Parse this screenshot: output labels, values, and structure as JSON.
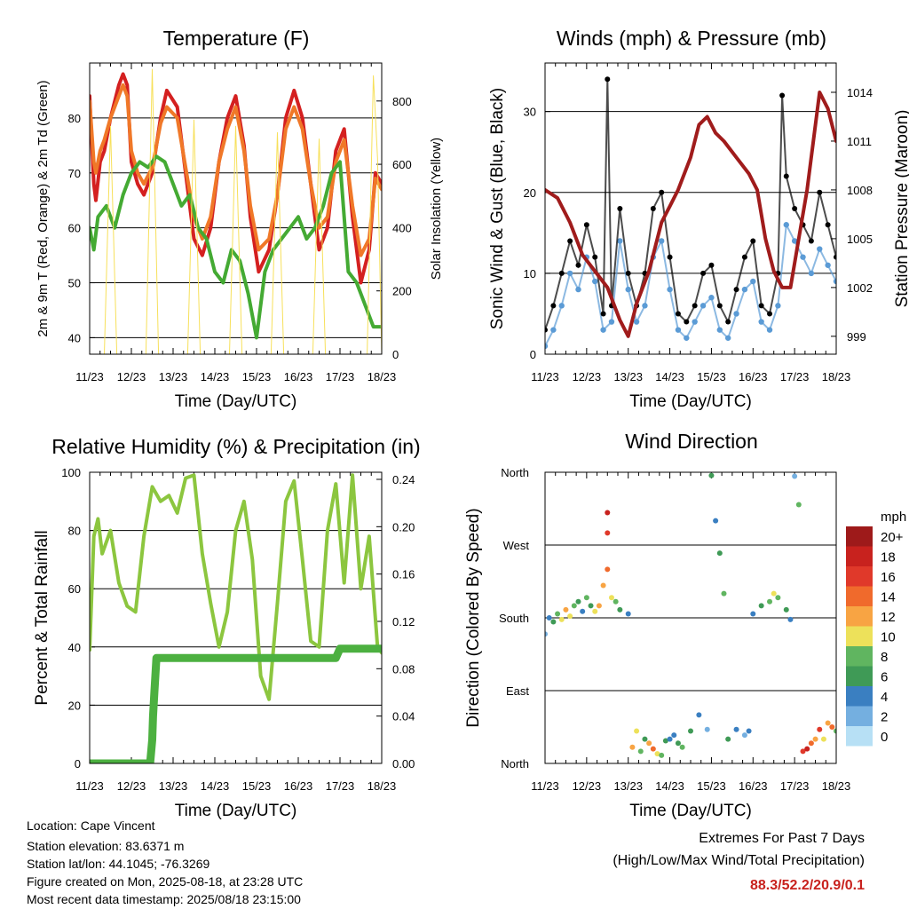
{
  "chart_data": [
    {
      "type": "line",
      "title": "Temperature (F)",
      "xlabel": "Time (Day/UTC)",
      "ylabel_left": "2m & 9m T (Red, Orange) & 2m Td (Green)",
      "ylabel_right": "Solar Insolation (Yellow)",
      "x_ticks": [
        "11/23",
        "12/23",
        "13/23",
        "14/23",
        "15/23",
        "16/23",
        "17/23",
        "18/23"
      ],
      "ylim_left": [
        37,
        90
      ],
      "yticks_left": [
        40,
        50,
        60,
        70,
        80
      ],
      "ylim_right": [
        0,
        920
      ],
      "yticks_right": [
        0,
        200,
        400,
        600,
        800
      ],
      "grid": "horizontal",
      "series": [
        {
          "name": "2m T",
          "color": "#d42020",
          "axis": "left",
          "x": [
            0,
            0.1,
            0.15,
            0.25,
            0.35,
            0.5,
            0.7,
            0.8,
            0.9,
            1.0,
            1.15,
            1.3,
            1.5,
            1.7,
            1.85,
            2.1,
            2.3,
            2.5,
            2.7,
            2.9,
            3.1,
            3.3,
            3.5,
            3.7,
            3.85,
            4.05,
            4.3,
            4.5,
            4.7,
            4.9,
            5.1,
            5.3,
            5.5,
            5.7,
            5.9,
            6.1,
            6.3,
            6.5,
            6.7,
            6.85,
            7.0
          ],
          "y": [
            84,
            68,
            65,
            72,
            74,
            80,
            86,
            88,
            86,
            72,
            68,
            66,
            70,
            80,
            85,
            82,
            70,
            58,
            55,
            60,
            72,
            80,
            84,
            75,
            62,
            52,
            56,
            66,
            80,
            85,
            80,
            68,
            56,
            60,
            74,
            78,
            62,
            50,
            56,
            70,
            68
          ]
        },
        {
          "name": "9m T",
          "color": "#f07828",
          "axis": "left",
          "x": [
            0,
            0.1,
            0.15,
            0.25,
            0.35,
            0.5,
            0.7,
            0.8,
            0.9,
            1.0,
            1.15,
            1.3,
            1.5,
            1.7,
            1.85,
            2.1,
            2.3,
            2.5,
            2.7,
            2.9,
            3.1,
            3.3,
            3.5,
            3.7,
            3.85,
            4.05,
            4.3,
            4.5,
            4.7,
            4.9,
            5.1,
            5.3,
            5.5,
            5.7,
            5.9,
            6.1,
            6.3,
            6.5,
            6.7,
            6.85,
            7.0
          ],
          "y": [
            83,
            72,
            70,
            74,
            76,
            80,
            84,
            86,
            84,
            74,
            70,
            68,
            71,
            79,
            82,
            80,
            71,
            62,
            58,
            62,
            72,
            78,
            82,
            74,
            64,
            56,
            58,
            66,
            78,
            82,
            78,
            68,
            60,
            62,
            72,
            76,
            64,
            55,
            58,
            69,
            67
          ]
        },
        {
          "name": "2m Td",
          "color": "#44aa33",
          "axis": "left",
          "x": [
            0,
            0.1,
            0.2,
            0.4,
            0.6,
            0.8,
            1.0,
            1.2,
            1.4,
            1.6,
            1.8,
            2.0,
            2.2,
            2.4,
            2.6,
            2.8,
            3.0,
            3.2,
            3.4,
            3.6,
            3.8,
            4.0,
            4.2,
            4.4,
            4.6,
            4.8,
            5.0,
            5.2,
            5.4,
            5.6,
            5.8,
            6.0,
            6.2,
            6.4,
            6.6,
            6.8,
            7.0
          ],
          "y": [
            60,
            56,
            62,
            64,
            60,
            66,
            70,
            72,
            71,
            73,
            72,
            68,
            64,
            66,
            60,
            58,
            52,
            50,
            56,
            54,
            48,
            40,
            52,
            56,
            58,
            60,
            62,
            58,
            60,
            64,
            70,
            72,
            52,
            50,
            46,
            42,
            42
          ]
        },
        {
          "name": "Solar Insolation",
          "color": "#f7e05a",
          "axis": "right",
          "x": [
            0.35,
            0.5,
            0.65,
            1.35,
            1.5,
            1.65,
            2.35,
            2.5,
            2.65,
            3.35,
            3.5,
            3.65,
            4.35,
            4.5,
            4.65,
            5.35,
            5.5,
            5.65,
            6.35,
            6.5,
            6.65,
            6.8,
            6.9,
            7.0
          ],
          "y": [
            0,
            720,
            0,
            0,
            900,
            0,
            0,
            740,
            0,
            0,
            720,
            0,
            0,
            700,
            0,
            0,
            680,
            0,
            0,
            0,
            0,
            880,
            620,
            0
          ]
        }
      ]
    },
    {
      "type": "scatter",
      "title": "Winds (mph) & Pressure (mb)",
      "xlabel": "Time (Day/UTC)",
      "ylabel_left": "Sonic Wind & Gust (Blue, Black)",
      "ylabel_right": "Station Pressure (Maroon)",
      "x_ticks": [
        "11/23",
        "12/23",
        "13/23",
        "14/23",
        "15/23",
        "16/23",
        "17/23",
        "18/23"
      ],
      "ylim_left": [
        0,
        36
      ],
      "yticks_left": [
        0,
        10,
        20,
        30
      ],
      "ylim_right": [
        997.9,
        1015.8
      ],
      "yticks_right": [
        999,
        1002,
        1005,
        1008,
        1011,
        1014
      ],
      "grid": "horizontal",
      "series": [
        {
          "name": "Sonic Wind",
          "color": "#5b9bd5",
          "axis": "left",
          "x": [
            0,
            0.2,
            0.4,
            0.6,
            0.8,
            1.0,
            1.2,
            1.4,
            1.6,
            1.8,
            2.0,
            2.2,
            2.4,
            2.6,
            2.8,
            3.0,
            3.2,
            3.4,
            3.6,
            3.8,
            4.0,
            4.2,
            4.4,
            4.6,
            4.8,
            5.0,
            5.2,
            5.4,
            5.6,
            5.8,
            6.0,
            6.2,
            6.4,
            6.6,
            6.8,
            7.0
          ],
          "y": [
            1,
            3,
            6,
            10,
            8,
            12,
            9,
            3,
            4,
            14,
            8,
            4,
            6,
            12,
            14,
            8,
            3,
            2,
            4,
            6,
            7,
            3,
            2,
            5,
            8,
            9,
            4,
            3,
            6,
            16,
            14,
            12,
            10,
            13,
            11,
            9
          ]
        },
        {
          "name": "Gust",
          "color": "#000000",
          "axis": "left",
          "x": [
            0,
            0.2,
            0.4,
            0.6,
            0.8,
            1.0,
            1.2,
            1.4,
            1.5,
            1.6,
            1.8,
            2.0,
            2.2,
            2.4,
            2.6,
            2.8,
            3.0,
            3.2,
            3.4,
            3.6,
            3.8,
            4.0,
            4.2,
            4.4,
            4.6,
            4.8,
            5.0,
            5.2,
            5.4,
            5.6,
            5.7,
            5.8,
            6.0,
            6.2,
            6.4,
            6.6,
            6.8,
            7.0
          ],
          "y": [
            3,
            6,
            10,
            14,
            11,
            16,
            12,
            5,
            34,
            6,
            18,
            10,
            6,
            10,
            18,
            20,
            12,
            5,
            4,
            6,
            10,
            11,
            6,
            4,
            8,
            12,
            14,
            6,
            5,
            10,
            32,
            22,
            18,
            16,
            14,
            20,
            16,
            12
          ]
        },
        {
          "name": "Station Pressure",
          "color": "#a01c1c",
          "axis": "right",
          "x": [
            0,
            0.3,
            0.6,
            0.9,
            1.2,
            1.5,
            1.8,
            2.0,
            2.2,
            2.5,
            2.8,
            3.0,
            3.2,
            3.5,
            3.7,
            3.9,
            4.1,
            4.3,
            4.6,
            4.9,
            5.1,
            5.3,
            5.5,
            5.7,
            5.9,
            6.1,
            6.3,
            6.5,
            6.6,
            6.8,
            7.0
          ],
          "y": [
            1008,
            1007.5,
            1006,
            1004,
            1003,
            1002,
            1000,
            999,
            1001,
            1003,
            1006,
            1007,
            1008,
            1010,
            1012,
            1012.5,
            1011.5,
            1011,
            1010,
            1009,
            1008,
            1005,
            1003,
            1002,
            1002,
            1005,
            1008,
            1012,
            1014,
            1013,
            1011
          ]
        }
      ]
    },
    {
      "type": "line",
      "title": "Relative Humidity (%) & Precipitation (in)",
      "xlabel": "Time (Day/UTC)",
      "ylabel_left": "Percent & Total Rainfall",
      "x_ticks": [
        "11/23",
        "12/23",
        "13/23",
        "14/23",
        "15/23",
        "16/23",
        "17/23",
        "18/23"
      ],
      "ylim_left": [
        0,
        100
      ],
      "yticks_left": [
        0,
        20,
        40,
        60,
        80,
        100
      ],
      "ylim_right": [
        0,
        0.246
      ],
      "yticks_right": [
        "0.00",
        "0.04",
        "0.08",
        "0.12",
        "0.16",
        "0.20",
        "0.24"
      ],
      "grid": "horizontal",
      "series": [
        {
          "name": "Relative Humidity",
          "color": "#8cc63f",
          "axis": "left",
          "x": [
            0,
            0.1,
            0.2,
            0.3,
            0.5,
            0.7,
            0.9,
            1.1,
            1.3,
            1.5,
            1.7,
            1.9,
            2.1,
            2.3,
            2.5,
            2.7,
            2.9,
            3.1,
            3.3,
            3.5,
            3.7,
            3.9,
            4.1,
            4.3,
            4.5,
            4.7,
            4.9,
            5.1,
            5.3,
            5.5,
            5.7,
            5.9,
            6.1,
            6.3,
            6.5,
            6.7,
            6.9,
            7.0
          ],
          "y": [
            39,
            78,
            84,
            72,
            80,
            62,
            54,
            52,
            78,
            95,
            90,
            92,
            86,
            98,
            99,
            72,
            55,
            40,
            52,
            80,
            90,
            70,
            30,
            22,
            55,
            90,
            97,
            70,
            42,
            40,
            80,
            96,
            62,
            99,
            60,
            78,
            40,
            38
          ]
        },
        {
          "name": "Total Precipitation",
          "color": "#4cb040",
          "axis": "right",
          "x": [
            0,
            0.5,
            1.0,
            1.45,
            1.5,
            1.52,
            1.55,
            1.6,
            2.0,
            3.0,
            4.0,
            5.0,
            5.9,
            6.0,
            6.5,
            7.0
          ],
          "y": [
            0,
            0,
            0,
            0,
            0.02,
            0.04,
            0.06,
            0.089,
            0.089,
            0.089,
            0.089,
            0.089,
            0.089,
            0.097,
            0.097,
            0.097
          ]
        }
      ]
    },
    {
      "type": "scatter",
      "title": "Wind Direction",
      "xlabel": "Time (Day/UTC)",
      "ylabel_left": "Direction (Colored By Speed)",
      "x_ticks": [
        "11/23",
        "12/23",
        "13/23",
        "14/23",
        "15/23",
        "16/23",
        "17/23",
        "18/23"
      ],
      "y_ticks": [
        "North",
        "East",
        "South",
        "West",
        "North"
      ],
      "ylim": [
        0,
        360
      ],
      "grid": "horizontal",
      "legend": {
        "title": "mph",
        "labels": [
          "20+",
          "18",
          "16",
          "14",
          "12",
          "10",
          "8",
          "6",
          "4",
          "2",
          "0"
        ],
        "colors": [
          "#9e1a1a",
          "#c8221e",
          "#e0392a",
          "#f06a2c",
          "#f8a443",
          "#ede15a",
          "#60b560",
          "#3f9a56",
          "#3a7fc1",
          "#74afe0",
          "#b7e0f5"
        ],
        "placement": "right"
      },
      "points": {
        "x": [
          0,
          0.1,
          0.2,
          0.3,
          0.4,
          0.5,
          0.6,
          0.7,
          0.8,
          0.9,
          1.0,
          1.1,
          1.2,
          1.3,
          1.4,
          1.5,
          1.5,
          1.5,
          1.6,
          1.7,
          1.8,
          2.0,
          2.1,
          2.2,
          2.3,
          2.4,
          2.5,
          2.6,
          2.7,
          2.8,
          2.9,
          3.0,
          3.1,
          3.2,
          3.3,
          3.5,
          3.7,
          3.9,
          4.0,
          4.1,
          4.2,
          4.3,
          4.4,
          4.6,
          4.8,
          4.9,
          5.0,
          5.2,
          5.4,
          5.5,
          5.6,
          5.8,
          5.9,
          6.0,
          6.1,
          6.2,
          6.3,
          6.4,
          6.5,
          6.6,
          6.7,
          6.8,
          6.9,
          7.0
        ],
        "y": [
          160,
          180,
          175,
          185,
          178,
          190,
          182,
          195,
          200,
          188,
          205,
          195,
          188,
          195,
          220,
          240,
          285,
          310,
          205,
          200,
          190,
          185,
          20,
          40,
          15,
          30,
          25,
          18,
          12,
          10,
          28,
          30,
          35,
          25,
          20,
          40,
          60,
          42,
          356,
          300,
          260,
          210,
          30,
          42,
          35,
          40,
          185,
          195,
          200,
          210,
          205,
          190,
          178,
          355,
          320,
          15,
          18,
          25,
          30,
          42,
          30,
          50,
          45,
          40
        ],
        "speed": [
          2,
          4,
          6,
          8,
          10,
          12,
          10,
          8,
          6,
          4,
          8,
          6,
          10,
          12,
          12,
          14,
          16,
          18,
          10,
          8,
          6,
          4,
          12,
          10,
          8,
          6,
          12,
          14,
          10,
          8,
          6,
          4,
          4,
          6,
          8,
          6,
          4,
          2,
          6,
          4,
          6,
          8,
          6,
          4,
          2,
          4,
          4,
          6,
          8,
          10,
          8,
          6,
          4,
          2,
          8,
          16,
          18,
          14,
          12,
          16,
          10,
          12,
          14,
          8
        ]
      }
    }
  ],
  "footer": {
    "location": "Location: Cape Vincent",
    "elevation": "Station elevation: 83.6371 m",
    "latlon": "Station lat/lon: 44.1045; -76.3269",
    "created": "Figure created on Mon, 2025-08-18, at 23:28 UTC",
    "timestamp": "Most recent data timestamp: 2025/08/18 23:15:00"
  },
  "extremes": {
    "title": "Extremes For Past 7 Days",
    "subtitle": "(High/Low/Max Wind/Total Precipitation)",
    "values": "88.3/52.2/20.9/0.1",
    "values_color": "#c8221e"
  }
}
